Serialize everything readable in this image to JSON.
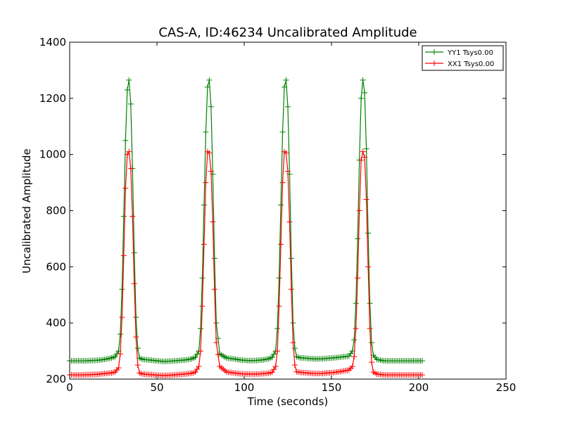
{
  "chart_data": {
    "type": "line",
    "title": "CAS-A, ID:46234 Uncalibrated Amplitude",
    "xlabel": "Time (seconds)",
    "ylabel": "Uncalibrated Amplitude",
    "xlim": [
      0,
      250
    ],
    "ylim": [
      200,
      1400
    ],
    "xticks": [
      "0",
      "50",
      "100",
      "150",
      "200",
      "250"
    ],
    "yticks": [
      "200",
      "400",
      "600",
      "800",
      "1000",
      "1200",
      "1400"
    ],
    "grid": false,
    "legend_position": "top-right",
    "marker": "plus",
    "series": [
      {
        "name": "YY1 Tsys0.00",
        "color": "#008000",
        "baseline": 265,
        "x": [
          0,
          4,
          8,
          12,
          16,
          20,
          24,
          26,
          28,
          29,
          30,
          31,
          32,
          33,
          34,
          35,
          36,
          37,
          38,
          39,
          40,
          42,
          46,
          50,
          54,
          58,
          62,
          66,
          70,
          72,
          74,
          75,
          76,
          77,
          78,
          79,
          80,
          81,
          82,
          83,
          84,
          86,
          90,
          94,
          98,
          102,
          106,
          110,
          114,
          116,
          118,
          119,
          120,
          121,
          122,
          123,
          124,
          125,
          126,
          127,
          128,
          129,
          130,
          132,
          136,
          140,
          144,
          148,
          152,
          156,
          160,
          162,
          163,
          164,
          165,
          166,
          167,
          168,
          169,
          170,
          171,
          172,
          173,
          174,
          176,
          180,
          184,
          188,
          192,
          196,
          200,
          202
        ],
        "y": [
          265,
          265,
          265,
          266,
          267,
          270,
          275,
          280,
          300,
          360,
          520,
          780,
          1050,
          1230,
          1265,
          1180,
          950,
          650,
          420,
          310,
          275,
          270,
          268,
          265,
          263,
          264,
          266,
          268,
          272,
          278,
          300,
          380,
          560,
          820,
          1080,
          1240,
          1265,
          1170,
          930,
          630,
          400,
          290,
          275,
          272,
          268,
          266,
          266,
          268,
          272,
          278,
          300,
          380,
          560,
          820,
          1080,
          1240,
          1265,
          1170,
          930,
          630,
          400,
          310,
          280,
          276,
          274,
          272,
          272,
          274,
          276,
          279,
          282,
          300,
          340,
          470,
          700,
          980,
          1200,
          1265,
          1220,
          1020,
          720,
          470,
          330,
          285,
          270,
          265,
          265,
          265,
          265,
          265,
          265,
          265
        ]
      },
      {
        "name": "XX1 Tsys0.00",
        "color": "#ff0000",
        "baseline": 215,
        "x": [
          0,
          4,
          8,
          12,
          16,
          20,
          24,
          26,
          28,
          29,
          30,
          31,
          32,
          33,
          34,
          35,
          36,
          37,
          38,
          39,
          40,
          42,
          46,
          50,
          54,
          58,
          62,
          66,
          70,
          72,
          74,
          75,
          76,
          77,
          78,
          79,
          80,
          81,
          82,
          83,
          84,
          86,
          90,
          94,
          98,
          102,
          106,
          110,
          114,
          116,
          118,
          119,
          120,
          121,
          122,
          123,
          124,
          125,
          126,
          127,
          128,
          129,
          130,
          132,
          136,
          140,
          144,
          148,
          152,
          156,
          160,
          162,
          163,
          164,
          165,
          166,
          167,
          168,
          169,
          170,
          171,
          172,
          173,
          174,
          176,
          180,
          184,
          188,
          192,
          196,
          200,
          202
        ],
        "y": [
          215,
          215,
          215,
          216,
          217,
          220,
          222,
          225,
          240,
          290,
          420,
          640,
          880,
          1000,
          1010,
          950,
          780,
          540,
          350,
          250,
          222,
          218,
          216,
          214,
          213,
          214,
          216,
          218,
          221,
          225,
          245,
          300,
          460,
          680,
          900,
          1010,
          1005,
          940,
          760,
          520,
          330,
          245,
          225,
          222,
          219,
          218,
          218,
          219,
          221,
          224,
          245,
          300,
          460,
          680,
          900,
          1010,
          1005,
          940,
          760,
          520,
          330,
          250,
          226,
          224,
          222,
          220,
          220,
          222,
          224,
          228,
          232,
          245,
          280,
          380,
          560,
          800,
          980,
          1010,
          990,
          840,
          600,
          380,
          260,
          225,
          218,
          215,
          215,
          215,
          215,
          215,
          215,
          215
        ]
      }
    ]
  }
}
